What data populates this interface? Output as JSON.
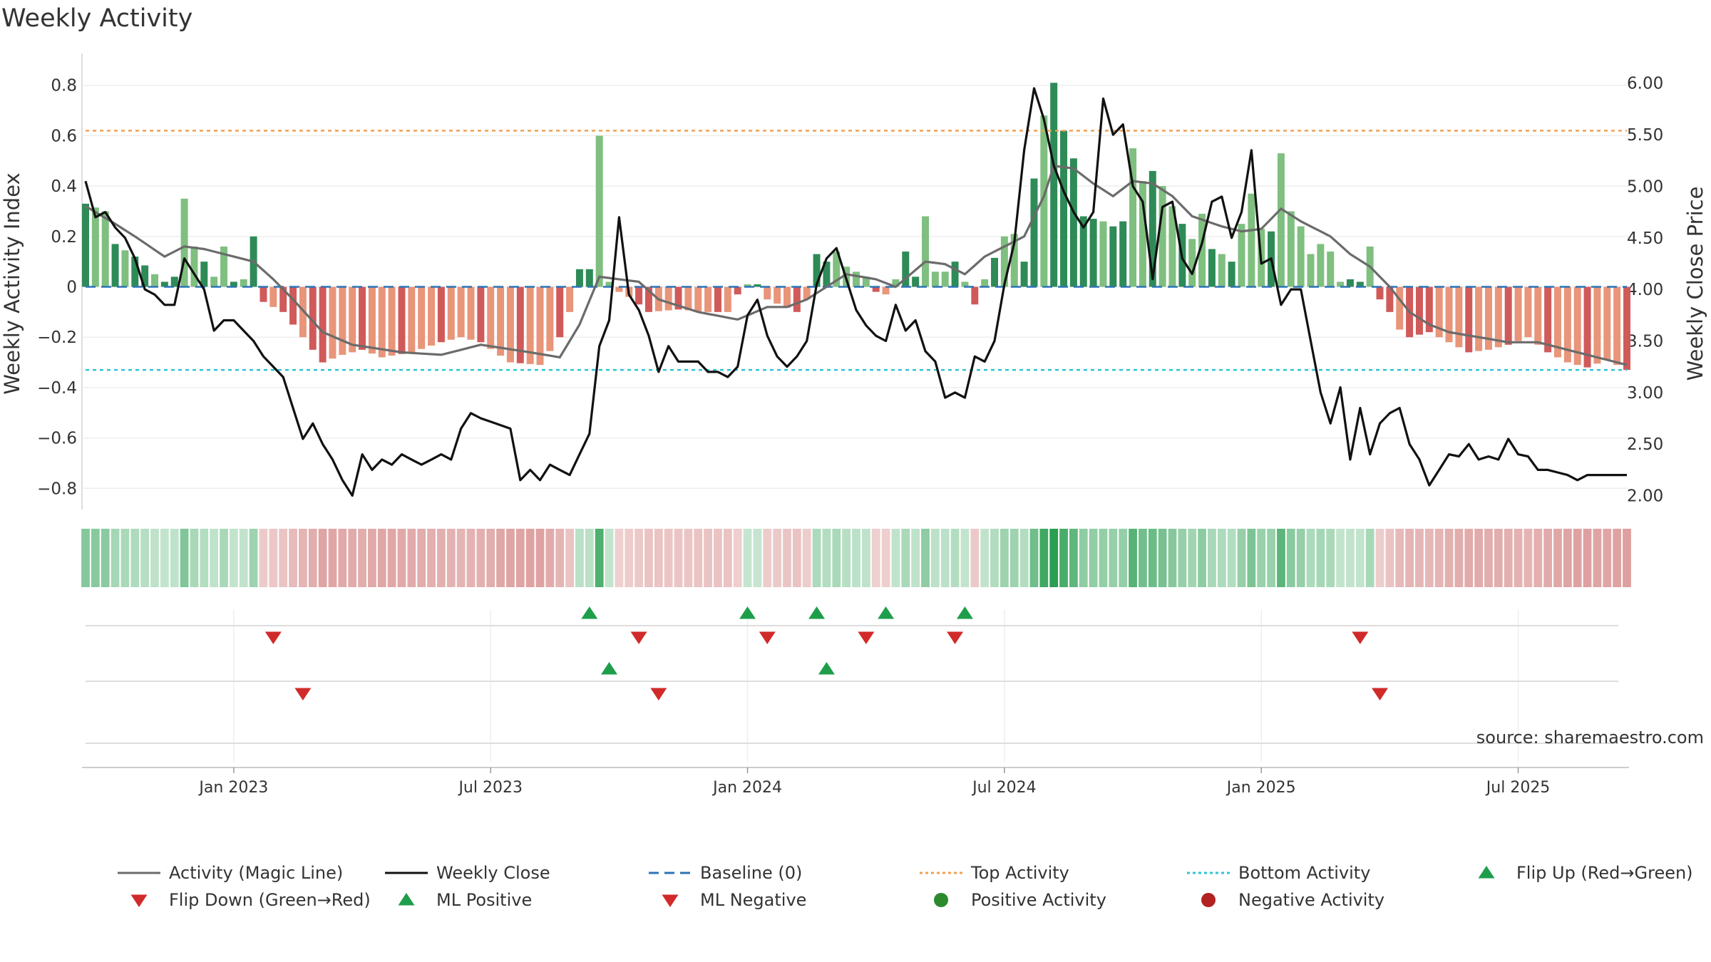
{
  "chart_data": {
    "type": "bar",
    "title": "Weekly Activity",
    "ylabel": "Weekly Activity Index",
    "y2label": "Weekly Close Price",
    "ylim": [
      -0.87,
      0.87
    ],
    "y2lim": [
      1.9,
      6.15
    ],
    "yticks": [
      {
        "v": 0.8,
        "t": "0.8"
      },
      {
        "v": 0.6,
        "t": "0.6"
      },
      {
        "v": 0.4,
        "t": "0.4"
      },
      {
        "v": 0.2,
        "t": "0.2"
      },
      {
        "v": 0,
        "t": "0"
      },
      {
        "v": -0.2,
        "t": "−0.2"
      },
      {
        "v": -0.4,
        "t": "−0.4"
      },
      {
        "v": -0.6,
        "t": "−0.6"
      },
      {
        "v": -0.8,
        "t": "−0.8"
      }
    ],
    "y2ticks": [
      {
        "v": 6.0,
        "t": "6.00"
      },
      {
        "v": 5.5,
        "t": "5.50"
      },
      {
        "v": 5.0,
        "t": "5.00"
      },
      {
        "v": 4.5,
        "t": "4.50"
      },
      {
        "v": 4.0,
        "t": "4.00"
      },
      {
        "v": 3.5,
        "t": "3.50"
      },
      {
        "v": 3.0,
        "t": "3.00"
      },
      {
        "v": 2.5,
        "t": "2.50"
      },
      {
        "v": 2.0,
        "t": "2.00"
      }
    ],
    "xticks": [
      {
        "w": 15,
        "t": "Jan 2023"
      },
      {
        "w": 41,
        "t": "Jul 2023"
      },
      {
        "w": 67,
        "t": "Jan 2024"
      },
      {
        "w": 93,
        "t": "Jul 2024"
      },
      {
        "w": 119,
        "t": "Jan 2025"
      },
      {
        "w": 145,
        "t": "Jul 2025"
      }
    ],
    "top_activity": 0.62,
    "bottom_activity": -0.33,
    "weeks": 157,
    "activity_anchors": [
      [
        0,
        0.33
      ],
      [
        2,
        0.3
      ],
      [
        3,
        0.17
      ],
      [
        5,
        0.12
      ],
      [
        7,
        0.05
      ],
      [
        8,
        0.02
      ],
      [
        9,
        0.04
      ],
      [
        10,
        0.35
      ],
      [
        11,
        0.16
      ],
      [
        13,
        0.04
      ],
      [
        14,
        0.16
      ],
      [
        15,
        0.02
      ],
      [
        16,
        0.03
      ],
      [
        17,
        0.2
      ],
      [
        18,
        -0.06
      ],
      [
        20,
        -0.1
      ],
      [
        22,
        -0.2
      ],
      [
        24,
        -0.3
      ],
      [
        26,
        -0.27
      ],
      [
        28,
        -0.25
      ],
      [
        30,
        -0.28
      ],
      [
        33,
        -0.26
      ],
      [
        36,
        -0.22
      ],
      [
        38,
        -0.2
      ],
      [
        40,
        -0.22
      ],
      [
        43,
        -0.3
      ],
      [
        46,
        -0.31
      ],
      [
        48,
        -0.2
      ],
      [
        49,
        -0.1
      ],
      [
        50,
        0.07
      ],
      [
        51,
        0.07
      ],
      [
        52,
        0.6
      ],
      [
        53,
        0.02
      ],
      [
        54,
        -0.02
      ],
      [
        55,
        -0.04
      ],
      [
        57,
        -0.1
      ],
      [
        60,
        -0.09
      ],
      [
        63,
        -0.1
      ],
      [
        65,
        -0.1
      ],
      [
        66,
        -0.03
      ],
      [
        67,
        0.01
      ],
      [
        68,
        0.01
      ],
      [
        69,
        -0.05
      ],
      [
        72,
        -0.1
      ],
      [
        73,
        -0.05
      ],
      [
        74,
        0.13
      ],
      [
        75,
        0.1
      ],
      [
        76,
        0.14
      ],
      [
        77,
        0.08
      ],
      [
        79,
        0.04
      ],
      [
        80,
        -0.02
      ],
      [
        81,
        -0.03
      ],
      [
        82,
        0.03
      ],
      [
        83,
        0.14
      ],
      [
        84,
        0.04
      ],
      [
        85,
        0.28
      ],
      [
        86,
        0.06
      ],
      [
        87,
        0.06
      ],
      [
        88,
        0.1
      ],
      [
        89,
        0.02
      ],
      [
        90,
        -0.07
      ],
      [
        91,
        0.03
      ],
      [
        93,
        0.2
      ],
      [
        94,
        0.21
      ],
      [
        95,
        0.1
      ],
      [
        96,
        0.43
      ],
      [
        97,
        0.68
      ],
      [
        98,
        0.81
      ],
      [
        99,
        0.62
      ],
      [
        100,
        0.51
      ],
      [
        101,
        0.28
      ],
      [
        103,
        0.26
      ],
      [
        104,
        0.24
      ],
      [
        105,
        0.26
      ],
      [
        106,
        0.55
      ],
      [
        107,
        0.42
      ],
      [
        108,
        0.46
      ],
      [
        109,
        0.4
      ],
      [
        110,
        0.32
      ],
      [
        111,
        0.25
      ],
      [
        112,
        0.19
      ],
      [
        113,
        0.29
      ],
      [
        114,
        0.15
      ],
      [
        115,
        0.13
      ],
      [
        116,
        0.1
      ],
      [
        117,
        0.25
      ],
      [
        118,
        0.37
      ],
      [
        119,
        0.23
      ],
      [
        120,
        0.22
      ],
      [
        121,
        0.53
      ],
      [
        122,
        0.3
      ],
      [
        123,
        0.24
      ],
      [
        124,
        0.13
      ],
      [
        125,
        0.17
      ],
      [
        126,
        0.14
      ],
      [
        127,
        0.02
      ],
      [
        128,
        0.03
      ],
      [
        129,
        0.02
      ],
      [
        130,
        0.16
      ],
      [
        131,
        -0.05
      ],
      [
        132,
        -0.1
      ],
      [
        133,
        -0.17
      ],
      [
        134,
        -0.2
      ],
      [
        136,
        -0.18
      ],
      [
        138,
        -0.22
      ],
      [
        140,
        -0.26
      ],
      [
        142,
        -0.25
      ],
      [
        144,
        -0.23
      ],
      [
        146,
        -0.2
      ],
      [
        148,
        -0.26
      ],
      [
        150,
        -0.3
      ],
      [
        152,
        -0.32
      ],
      [
        154,
        -0.29
      ],
      [
        156,
        -0.33
      ]
    ],
    "magic_anchors": [
      [
        0,
        0.32
      ],
      [
        3,
        0.25
      ],
      [
        5,
        0.2
      ],
      [
        8,
        0.12
      ],
      [
        10,
        0.16
      ],
      [
        12,
        0.15
      ],
      [
        15,
        0.12
      ],
      [
        17,
        0.1
      ],
      [
        19,
        0.03
      ],
      [
        21,
        -0.05
      ],
      [
        24,
        -0.18
      ],
      [
        27,
        -0.23
      ],
      [
        32,
        -0.26
      ],
      [
        36,
        -0.27
      ],
      [
        40,
        -0.23
      ],
      [
        45,
        -0.26
      ],
      [
        48,
        -0.28
      ],
      [
        50,
        -0.15
      ],
      [
        52,
        0.04
      ],
      [
        56,
        0.02
      ],
      [
        58,
        -0.05
      ],
      [
        62,
        -0.1
      ],
      [
        66,
        -0.13
      ],
      [
        69,
        -0.08
      ],
      [
        71,
        -0.08
      ],
      [
        73,
        -0.05
      ],
      [
        75,
        0.0
      ],
      [
        77,
        0.05
      ],
      [
        80,
        0.03
      ],
      [
        82,
        0.0
      ],
      [
        85,
        0.1
      ],
      [
        87,
        0.09
      ],
      [
        89,
        0.05
      ],
      [
        91,
        0.12
      ],
      [
        93,
        0.16
      ],
      [
        95,
        0.2
      ],
      [
        97,
        0.36
      ],
      [
        98,
        0.48
      ],
      [
        100,
        0.47
      ],
      [
        102,
        0.41
      ],
      [
        104,
        0.36
      ],
      [
        106,
        0.42
      ],
      [
        108,
        0.41
      ],
      [
        110,
        0.36
      ],
      [
        112,
        0.28
      ],
      [
        115,
        0.24
      ],
      [
        117,
        0.22
      ],
      [
        119,
        0.23
      ],
      [
        121,
        0.31
      ],
      [
        123,
        0.26
      ],
      [
        126,
        0.2
      ],
      [
        128,
        0.13
      ],
      [
        130,
        0.08
      ],
      [
        132,
        0.0
      ],
      [
        134,
        -0.1
      ],
      [
        136,
        -0.15
      ],
      [
        138,
        -0.18
      ],
      [
        141,
        -0.2
      ],
      [
        144,
        -0.22
      ],
      [
        147,
        -0.22
      ],
      [
        150,
        -0.25
      ],
      [
        153,
        -0.28
      ],
      [
        156,
        -0.31
      ]
    ],
    "close_anchors": [
      [
        0,
        5.05
      ],
      [
        1,
        4.7
      ],
      [
        2,
        4.75
      ],
      [
        3,
        4.6
      ],
      [
        4,
        4.5
      ],
      [
        5,
        4.3
      ],
      [
        6,
        4.0
      ],
      [
        7,
        3.95
      ],
      [
        8,
        3.85
      ],
      [
        9,
        3.85
      ],
      [
        10,
        4.3
      ],
      [
        11,
        4.15
      ],
      [
        12,
        4.0
      ],
      [
        13,
        3.6
      ],
      [
        14,
        3.7
      ],
      [
        15,
        3.7
      ],
      [
        16,
        3.6
      ],
      [
        17,
        3.5
      ],
      [
        18,
        3.35
      ],
      [
        19,
        3.25
      ],
      [
        20,
        3.15
      ],
      [
        21,
        2.85
      ],
      [
        22,
        2.55
      ],
      [
        23,
        2.7
      ],
      [
        24,
        2.5
      ],
      [
        25,
        2.35
      ],
      [
        26,
        2.15
      ],
      [
        27,
        2.0
      ],
      [
        28,
        2.4
      ],
      [
        29,
        2.25
      ],
      [
        30,
        2.35
      ],
      [
        31,
        2.3
      ],
      [
        32,
        2.4
      ],
      [
        33,
        2.35
      ],
      [
        34,
        2.3
      ],
      [
        36,
        2.4
      ],
      [
        37,
        2.35
      ],
      [
        38,
        2.65
      ],
      [
        39,
        2.8
      ],
      [
        40,
        2.75
      ],
      [
        43,
        2.65
      ],
      [
        44,
        2.15
      ],
      [
        45,
        2.25
      ],
      [
        46,
        2.15
      ],
      [
        47,
        2.3
      ],
      [
        48,
        2.25
      ],
      [
        49,
        2.2
      ],
      [
        50,
        2.4
      ],
      [
        51,
        2.6
      ],
      [
        52,
        3.45
      ],
      [
        53,
        3.7
      ],
      [
        54,
        4.7
      ],
      [
        55,
        3.95
      ],
      [
        56,
        3.8
      ],
      [
        57,
        3.55
      ],
      [
        58,
        3.2
      ],
      [
        59,
        3.45
      ],
      [
        60,
        3.3
      ],
      [
        62,
        3.3
      ],
      [
        63,
        3.2
      ],
      [
        64,
        3.2
      ],
      [
        65,
        3.15
      ],
      [
        66,
        3.25
      ],
      [
        67,
        3.75
      ],
      [
        68,
        3.9
      ],
      [
        69,
        3.55
      ],
      [
        70,
        3.35
      ],
      [
        71,
        3.25
      ],
      [
        72,
        3.35
      ],
      [
        73,
        3.5
      ],
      [
        74,
        4.05
      ],
      [
        75,
        4.3
      ],
      [
        76,
        4.4
      ],
      [
        77,
        4.1
      ],
      [
        78,
        3.8
      ],
      [
        79,
        3.65
      ],
      [
        80,
        3.55
      ],
      [
        81,
        3.5
      ],
      [
        82,
        3.85
      ],
      [
        83,
        3.6
      ],
      [
        84,
        3.7
      ],
      [
        85,
        3.4
      ],
      [
        86,
        3.3
      ],
      [
        87,
        2.95
      ],
      [
        88,
        3.0
      ],
      [
        89,
        2.95
      ],
      [
        90,
        3.35
      ],
      [
        91,
        3.3
      ],
      [
        92,
        3.5
      ],
      [
        93,
        4.05
      ],
      [
        94,
        4.45
      ],
      [
        95,
        5.35
      ],
      [
        96,
        5.95
      ],
      [
        97,
        5.65
      ],
      [
        98,
        5.2
      ],
      [
        99,
        4.95
      ],
      [
        100,
        4.75
      ],
      [
        101,
        4.6
      ],
      [
        102,
        4.75
      ],
      [
        103,
        5.85
      ],
      [
        104,
        5.5
      ],
      [
        105,
        5.6
      ],
      [
        106,
        5.0
      ],
      [
        107,
        4.85
      ],
      [
        108,
        4.1
      ],
      [
        109,
        4.8
      ],
      [
        110,
        4.85
      ],
      [
        111,
        4.3
      ],
      [
        112,
        4.15
      ],
      [
        113,
        4.45
      ],
      [
        114,
        4.85
      ],
      [
        115,
        4.9
      ],
      [
        116,
        4.5
      ],
      [
        117,
        4.75
      ],
      [
        118,
        5.35
      ],
      [
        119,
        4.25
      ],
      [
        120,
        4.3
      ],
      [
        121,
        3.85
      ],
      [
        122,
        4.0
      ],
      [
        123,
        4.0
      ],
      [
        124,
        3.5
      ],
      [
        125,
        3.0
      ],
      [
        126,
        2.7
      ],
      [
        127,
        3.05
      ],
      [
        128,
        2.35
      ],
      [
        129,
        2.85
      ],
      [
        130,
        2.4
      ],
      [
        131,
        2.7
      ],
      [
        132,
        2.8
      ],
      [
        133,
        2.85
      ],
      [
        134,
        2.5
      ],
      [
        135,
        2.35
      ],
      [
        136,
        2.1
      ],
      [
        137,
        2.25
      ],
      [
        138,
        2.4
      ],
      [
        139,
        2.38
      ],
      [
        140,
        2.5
      ],
      [
        141,
        2.35
      ],
      [
        142,
        2.38
      ],
      [
        143,
        2.35
      ],
      [
        144,
        2.55
      ],
      [
        145,
        2.4
      ],
      [
        146,
        2.38
      ],
      [
        147,
        2.25
      ],
      [
        148,
        2.25
      ],
      [
        150,
        2.2
      ],
      [
        151,
        2.15
      ],
      [
        152,
        2.2
      ],
      [
        154,
        2.2
      ],
      [
        156,
        2.2
      ]
    ],
    "flip_up": [
      51,
      67,
      74,
      81,
      89
    ],
    "flip_down": [
      19,
      56,
      69,
      79,
      88,
      129
    ],
    "ml_positive": [
      53,
      75
    ],
    "ml_negative": [
      22,
      58,
      131
    ],
    "legend": [
      {
        "type": "line",
        "color": "#6b6b6b",
        "dash": "",
        "label": "Activity (Magic Line)"
      },
      {
        "type": "line",
        "color": "#111111",
        "dash": "",
        "label": "Weekly Close"
      },
      {
        "type": "line",
        "color": "#2b73b7",
        "dash": "14,8",
        "label": "Baseline (0)"
      },
      {
        "type": "line",
        "color": "#f0a050",
        "dash": "4,4",
        "label": "Top Activity"
      },
      {
        "type": "line",
        "color": "#2ec4d6",
        "dash": "4,4",
        "label": "Bottom Activity"
      },
      {
        "type": "up",
        "color": "#1e9e4a",
        "label": "Flip Up (Red→Green)"
      },
      {
        "type": "down",
        "color": "#d12a2a",
        "label": "Flip Down (Green→Red)"
      },
      {
        "type": "up",
        "color": "#1e9e4a",
        "label": "ML Positive"
      },
      {
        "type": "down",
        "color": "#d12a2a",
        "label": "ML Negative"
      },
      {
        "type": "dot",
        "color": "#2b8a2b",
        "label": "Positive Activity"
      },
      {
        "type": "dot",
        "color": "#b22222",
        "label": "Negative Activity"
      }
    ],
    "colors": {
      "pos_strong": "#2e8b57",
      "pos_light": "#7fbf7f",
      "neg_strong": "#d05a5a",
      "neg_light": "#e8957a",
      "strip_pos": "#1f9a48",
      "strip_neg": "#c25050"
    }
  },
  "source": "source: sharemaestro.com"
}
